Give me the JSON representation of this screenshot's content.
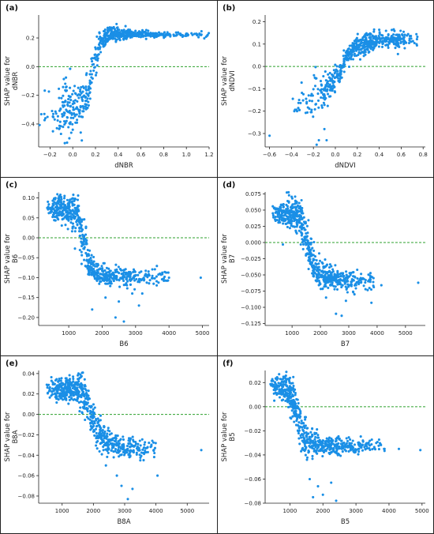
{
  "figure": {
    "background": "#ffffff",
    "point_color": "#1a8fe6",
    "zero_line_color": "#2ca02c"
  },
  "chart_data": [
    {
      "type": "scatter",
      "panel_label": "(a)",
      "xlabel": "dNBR",
      "ylabel": [
        "SHAP value for",
        "dNBR"
      ],
      "xlim": [
        -0.3,
        1.2
      ],
      "ylim": [
        -0.56,
        0.36
      ],
      "xticks": [
        -0.2,
        0.0,
        0.2,
        0.4,
        0.6,
        0.8,
        1.0,
        1.2
      ],
      "xtick_labels": [
        "−0.2",
        "0.0",
        "0.2",
        "0.4",
        "0.6",
        "0.8",
        "1.0",
        "1.2"
      ],
      "yticks": [
        -0.4,
        -0.2,
        0.0,
        0.2
      ],
      "ytick_labels": [
        "−0.4",
        "−0.2",
        "0.0",
        "0.2"
      ],
      "zero_line": 0,
      "grid": false,
      "knots": [
        [
          -0.27,
          -0.33
        ],
        [
          -0.1,
          -0.3
        ],
        [
          0.0,
          -0.28
        ],
        [
          0.08,
          -0.26
        ],
        [
          0.13,
          -0.18
        ],
        [
          0.18,
          0.0
        ],
        [
          0.25,
          0.18
        ],
        [
          0.33,
          0.23
        ],
        [
          0.5,
          0.225
        ],
        [
          1.15,
          0.22
        ]
      ],
      "noise": [
        [
          0.0,
          0.09
        ],
        [
          0.12,
          0.06
        ],
        [
          0.18,
          0.06
        ],
        [
          0.28,
          0.04
        ],
        [
          0.45,
          0.02
        ],
        [
          0.6,
          0.01
        ],
        [
          1.2,
          0.01
        ]
      ],
      "point_count": 620,
      "x_density": [
        [
          -0.3,
          0.05
        ],
        [
          -0.15,
          0.25
        ],
        [
          -0.05,
          1.2
        ],
        [
          0.08,
          1.0
        ],
        [
          0.2,
          1.0
        ],
        [
          0.35,
          1.6
        ],
        [
          0.5,
          1.2
        ],
        [
          0.7,
          0.6
        ],
        [
          0.9,
          0.3
        ],
        [
          1.2,
          0.1
        ]
      ],
      "extra_points": [
        [
          -0.25,
          -0.33
        ],
        [
          -0.05,
          -0.53
        ],
        [
          -0.03,
          -0.5
        ],
        [
          0.0,
          -0.44
        ],
        [
          0.05,
          -0.3
        ],
        [
          0.14,
          -0.27
        ],
        [
          0.07,
          -0.46
        ],
        [
          1.13,
          0.22
        ]
      ]
    },
    {
      "type": "scatter",
      "panel_label": "(b)",
      "xlabel": "dNDVI",
      "ylabel": [
        "SHAP value for",
        "dNDVI"
      ],
      "xlim": [
        -0.64,
        0.82
      ],
      "ylim": [
        -0.36,
        0.23
      ],
      "xticks": [
        -0.6,
        -0.4,
        -0.2,
        0.0,
        0.2,
        0.4,
        0.6,
        0.8
      ],
      "xtick_labels": [
        "−0.6",
        "−0.4",
        "−0.2",
        "0.0",
        "0.2",
        "0.4",
        "0.6",
        "0.8"
      ],
      "yticks": [
        -0.3,
        -0.2,
        -0.1,
        0.0,
        0.1,
        0.2
      ],
      "ytick_labels": [
        "−0.3",
        "−0.2",
        "−0.1",
        "0.0",
        "0.1",
        "0.2"
      ],
      "zero_line": 0,
      "grid": false,
      "knots": [
        [
          -0.6,
          -0.31
        ],
        [
          -0.3,
          -0.18
        ],
        [
          -0.15,
          -0.13
        ],
        [
          -0.05,
          -0.08
        ],
        [
          0.05,
          -0.02
        ],
        [
          0.1,
          0.04
        ],
        [
          0.18,
          0.08
        ],
        [
          0.3,
          0.11
        ],
        [
          0.45,
          0.12
        ],
        [
          0.7,
          0.12
        ]
      ],
      "noise": [
        [
          -0.6,
          0.04
        ],
        [
          -0.1,
          0.045
        ],
        [
          0.05,
          0.02
        ],
        [
          0.2,
          0.025
        ],
        [
          0.4,
          0.02
        ],
        [
          0.8,
          0.02
        ]
      ],
      "point_count": 560,
      "x_density": [
        [
          -0.4,
          0.05
        ],
        [
          -0.2,
          0.4
        ],
        [
          -0.05,
          1.0
        ],
        [
          0.1,
          0.9
        ],
        [
          0.3,
          1.3
        ],
        [
          0.5,
          1.1
        ],
        [
          0.7,
          0.3
        ],
        [
          0.8,
          0.05
        ]
      ],
      "extra_points": [
        [
          -0.6,
          -0.31
        ],
        [
          -0.33,
          -0.15
        ],
        [
          -0.17,
          -0.35
        ],
        [
          -0.15,
          -0.33
        ],
        [
          -0.1,
          -0.28
        ],
        [
          -0.08,
          -0.33
        ]
      ]
    },
    {
      "type": "scatter",
      "panel_label": "(c)",
      "xlabel": "B6",
      "ylabel": [
        "SHAP value for",
        "B6"
      ],
      "xlim": [
        100,
        5200
      ],
      "ylim": [
        -0.22,
        0.115
      ],
      "xticks": [
        1000,
        2000,
        3000,
        4000,
        5000
      ],
      "xtick_labels": [
        "1000",
        "2000",
        "3000",
        "4000",
        "5000"
      ],
      "yticks": [
        -0.2,
        -0.15,
        -0.1,
        -0.05,
        0.0,
        0.05,
        0.1
      ],
      "ytick_labels": [
        "−0.20",
        "−0.15",
        "−0.10",
        "−0.05",
        "0.00",
        "0.05",
        "0.10"
      ],
      "zero_line": 0,
      "grid": false,
      "knots": [
        [
          400,
          0.075
        ],
        [
          800,
          0.075
        ],
        [
          1100,
          0.068
        ],
        [
          1300,
          0.045
        ],
        [
          1450,
          0.0
        ],
        [
          1600,
          -0.07
        ],
        [
          1800,
          -0.09
        ],
        [
          2200,
          -0.095
        ],
        [
          3000,
          -0.1
        ],
        [
          3600,
          -0.098
        ]
      ],
      "noise": [
        [
          400,
          0.012
        ],
        [
          1000,
          0.02
        ],
        [
          1400,
          0.03
        ],
        [
          1700,
          0.018
        ],
        [
          2200,
          0.012
        ],
        [
          3600,
          0.01
        ]
      ],
      "point_count": 640,
      "x_density": [
        [
          350,
          0.15
        ],
        [
          600,
          0.9
        ],
        [
          900,
          1.2
        ],
        [
          1300,
          1.0
        ],
        [
          1600,
          0.9
        ],
        [
          2000,
          0.8
        ],
        [
          2500,
          0.6
        ],
        [
          3000,
          0.35
        ],
        [
          3600,
          0.15
        ],
        [
          4000,
          0.05
        ]
      ],
      "extra_points": [
        [
          1700,
          -0.18
        ],
        [
          2400,
          -0.2
        ],
        [
          2650,
          -0.21
        ],
        [
          2900,
          -0.14
        ],
        [
          3200,
          -0.14
        ],
        [
          3100,
          -0.17
        ],
        [
          4000,
          -0.1
        ],
        [
          4950,
          -0.1
        ],
        [
          2100,
          -0.15
        ],
        [
          2500,
          -0.16
        ]
      ]
    },
    {
      "type": "scatter",
      "panel_label": "(d)",
      "xlabel": "B7",
      "ylabel": [
        "SHAP value for",
        "B7"
      ],
      "xlim": [
        50,
        5700
      ],
      "ylim": [
        -0.128,
        0.078
      ],
      "xticks": [
        1000,
        2000,
        3000,
        4000,
        5000
      ],
      "xtick_labels": [
        "1000",
        "2000",
        "3000",
        "4000",
        "5000"
      ],
      "yticks": [
        -0.125,
        -0.1,
        -0.075,
        -0.05,
        -0.025,
        0.0,
        0.025,
        0.05,
        0.075
      ],
      "ytick_labels": [
        "−0.125",
        "−0.100",
        "−0.075",
        "−0.050",
        "−0.025",
        "0.000",
        "0.025",
        "0.050",
        "0.075"
      ],
      "zero_line": 0,
      "grid": false,
      "knots": [
        [
          400,
          0.045
        ],
        [
          900,
          0.045
        ],
        [
          1200,
          0.04
        ],
        [
          1450,
          0.015
        ],
        [
          1600,
          -0.015
        ],
        [
          1800,
          -0.04
        ],
        [
          2200,
          -0.052
        ],
        [
          2800,
          -0.058
        ],
        [
          3500,
          -0.06
        ],
        [
          4100,
          -0.06
        ]
      ],
      "noise": [
        [
          400,
          0.008
        ],
        [
          1000,
          0.012
        ],
        [
          1500,
          0.018
        ],
        [
          1900,
          0.012
        ],
        [
          2500,
          0.008
        ],
        [
          4100,
          0.006
        ]
      ],
      "point_count": 640,
      "x_density": [
        [
          300,
          0.2
        ],
        [
          600,
          0.9
        ],
        [
          1000,
          1.3
        ],
        [
          1400,
          1.0
        ],
        [
          1800,
          0.9
        ],
        [
          2300,
          0.8
        ],
        [
          2800,
          0.5
        ],
        [
          3400,
          0.25
        ],
        [
          4000,
          0.08
        ]
      ],
      "extra_points": [
        [
          5450,
          -0.062
        ],
        [
          2550,
          -0.11
        ],
        [
          2750,
          -0.113
        ],
        [
          2900,
          -0.09
        ],
        [
          3800,
          -0.093
        ],
        [
          2200,
          -0.085
        ],
        [
          4150,
          -0.066
        ],
        [
          3200,
          -0.08
        ]
      ]
    },
    {
      "type": "scatter",
      "panel_label": "(e)",
      "xlabel": "B8A",
      "ylabel": [
        "SHAP value for",
        "B8A"
      ],
      "xlim": [
        250,
        5700
      ],
      "ylim": [
        -0.087,
        0.043
      ],
      "xticks": [
        1000,
        2000,
        3000,
        4000,
        5000
      ],
      "xtick_labels": [
        "1000",
        "2000",
        "3000",
        "4000",
        "5000"
      ],
      "yticks": [
        -0.08,
        -0.06,
        -0.04,
        -0.02,
        0.0,
        0.02,
        0.04
      ],
      "ytick_labels": [
        "−0.08",
        "−0.06",
        "−0.04",
        "−0.02",
        "0.00",
        "0.02",
        "0.04"
      ],
      "zero_line": 0,
      "grid": false,
      "knots": [
        [
          550,
          0.025
        ],
        [
          1200,
          0.024
        ],
        [
          1600,
          0.024
        ],
        [
          1800,
          0.012
        ],
        [
          1950,
          -0.005
        ],
        [
          2150,
          -0.018
        ],
        [
          2500,
          -0.028
        ],
        [
          3000,
          -0.033
        ],
        [
          3700,
          -0.034
        ],
        [
          4100,
          -0.034
        ]
      ],
      "noise": [
        [
          550,
          0.005
        ],
        [
          1300,
          0.006
        ],
        [
          1700,
          0.01
        ],
        [
          2000,
          0.009
        ],
        [
          2600,
          0.006
        ],
        [
          4100,
          0.004
        ]
      ],
      "point_count": 640,
      "x_density": [
        [
          500,
          0.2
        ],
        [
          800,
          0.8
        ],
        [
          1200,
          1.2
        ],
        [
          1600,
          1.1
        ],
        [
          2000,
          0.9
        ],
        [
          2500,
          0.8
        ],
        [
          3000,
          0.6
        ],
        [
          3500,
          0.3
        ],
        [
          4000,
          0.1
        ]
      ],
      "extra_points": [
        [
          5450,
          -0.035
        ],
        [
          2750,
          -0.06
        ],
        [
          2900,
          -0.07
        ],
        [
          3100,
          -0.083
        ],
        [
          3250,
          -0.073
        ],
        [
          4050,
          -0.06
        ],
        [
          2400,
          -0.05
        ],
        [
          3500,
          -0.045
        ]
      ]
    },
    {
      "type": "scatter",
      "panel_label": "(f)",
      "xlabel": "B5",
      "ylabel": [
        "SHAP value for",
        "B5"
      ],
      "xlim": [
        250,
        5100
      ],
      "ylim": [
        -0.08,
        0.03
      ],
      "xticks": [
        1000,
        2000,
        3000,
        4000,
        5000
      ],
      "xtick_labels": [
        "1000",
        "2000",
        "3000",
        "4000",
        "5000"
      ],
      "yticks": [
        -0.08,
        -0.06,
        -0.04,
        -0.02,
        0.0,
        0.02
      ],
      "ytick_labels": [
        "−0.08",
        "−0.06",
        "−0.04",
        "−0.02",
        "0.00",
        "0.02"
      ],
      "zero_line": 0,
      "grid": false,
      "knots": [
        [
          450,
          0.017
        ],
        [
          800,
          0.016
        ],
        [
          1050,
          0.01
        ],
        [
          1200,
          0.0
        ],
        [
          1350,
          -0.02
        ],
        [
          1500,
          -0.028
        ],
        [
          1800,
          -0.032
        ],
        [
          2300,
          -0.033
        ],
        [
          3000,
          -0.033
        ],
        [
          3700,
          -0.033
        ]
      ],
      "noise": [
        [
          450,
          0.004
        ],
        [
          900,
          0.006
        ],
        [
          1200,
          0.01
        ],
        [
          1500,
          0.008
        ],
        [
          2000,
          0.004
        ],
        [
          3700,
          0.003
        ]
      ],
      "point_count": 620,
      "x_density": [
        [
          400,
          0.3
        ],
        [
          700,
          1.1
        ],
        [
          1000,
          1.3
        ],
        [
          1300,
          1.0
        ],
        [
          1700,
          0.8
        ],
        [
          2200,
          0.7
        ],
        [
          2800,
          0.4
        ],
        [
          3400,
          0.2
        ],
        [
          3900,
          0.06
        ]
      ],
      "extra_points": [
        [
          4950,
          -0.036
        ],
        [
          1700,
          -0.075
        ],
        [
          2000,
          -0.073
        ],
        [
          2250,
          -0.063
        ],
        [
          2400,
          -0.078
        ],
        [
          1600,
          -0.06
        ],
        [
          3850,
          -0.035
        ],
        [
          4300,
          -0.035
        ],
        [
          1850,
          -0.066
        ]
      ]
    }
  ]
}
